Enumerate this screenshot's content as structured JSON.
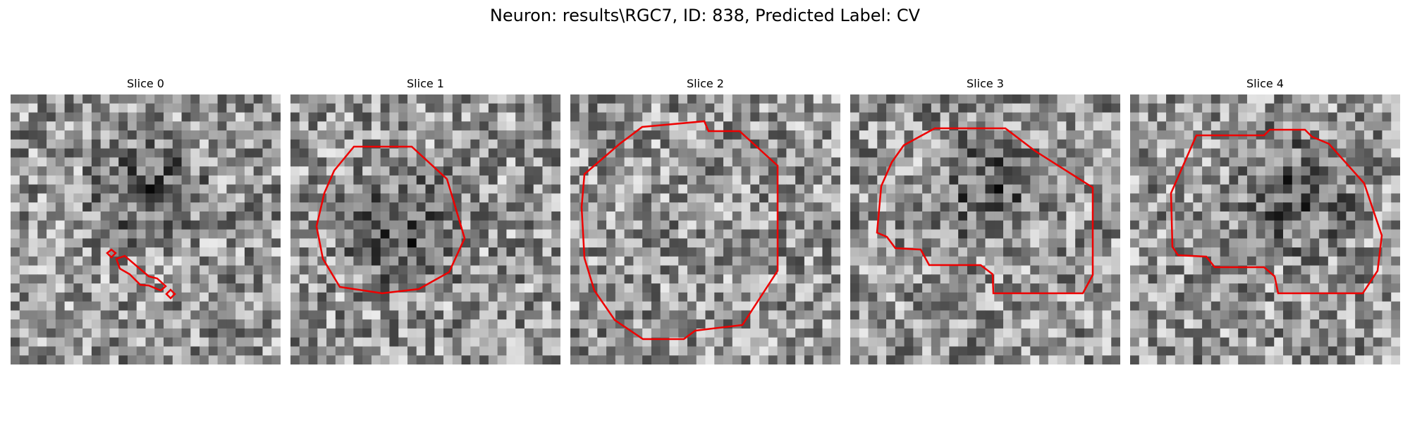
{
  "figure": {
    "title": "Neuron: results\\RGC7, ID: 838, Predicted Label: CV",
    "contour_color": "#ee0000"
  },
  "slices": [
    {
      "label": "Slice 0",
      "seed": 11,
      "dark_region": "upper-center"
    },
    {
      "label": "Slice 1",
      "seed": 23,
      "dark_region": "center"
    },
    {
      "label": "Slice 2",
      "seed": 37,
      "dark_region": "none"
    },
    {
      "label": "Slice 3",
      "seed": 49,
      "dark_region": "upper-center"
    },
    {
      "label": "Slice 4",
      "seed": 61,
      "dark_region": "upper-right"
    }
  ]
}
